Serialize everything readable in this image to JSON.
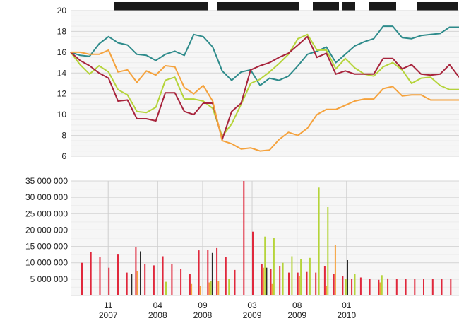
{
  "chart_data": [
    {
      "type": "line",
      "ylim": [
        6,
        20
      ],
      "yticks": [
        "6",
        "8",
        "10",
        "12",
        "14",
        "16",
        "18",
        "20"
      ],
      "grid": true,
      "legend": "top-right (unreadable)",
      "x_count": 42,
      "series": [
        {
          "color": "#2e8b8b",
          "values": [
            16.0,
            15.7,
            15.6,
            16.8,
            17.5,
            16.9,
            16.7,
            15.8,
            15.7,
            15.2,
            15.8,
            16.1,
            15.7,
            17.7,
            17.5,
            16.5,
            14.2,
            13.3,
            14.1,
            14.3,
            12.8,
            13.5,
            13.3,
            13.7,
            14.7,
            15.8,
            16.1,
            16.5,
            15.0,
            15.8,
            16.6,
            17.0,
            17.3,
            18.5,
            18.5,
            17.4,
            17.3,
            17.6,
            17.7,
            17.8,
            18.4,
            18.4
          ]
        },
        {
          "color": "#b5d43a",
          "values": [
            16.0,
            14.8,
            13.9,
            14.7,
            14.1,
            12.4,
            11.9,
            10.3,
            10.2,
            10.7,
            13.3,
            13.6,
            11.5,
            11.5,
            11.3,
            10.6,
            7.9,
            9.1,
            11.0,
            13.0,
            13.4,
            14.1,
            14.9,
            15.8,
            17.3,
            17.7,
            16.2,
            16.2,
            14.4,
            15.4,
            14.5,
            13.9,
            13.7,
            14.6,
            15.0,
            14.3,
            13.0,
            13.5,
            13.6,
            12.8,
            12.4,
            12.4
          ]
        },
        {
          "color": "#a8243c",
          "values": [
            16.0,
            15.2,
            14.7,
            14.0,
            13.5,
            11.3,
            11.4,
            9.6,
            9.6,
            9.4,
            12.1,
            12.1,
            10.3,
            10.0,
            11.1,
            11.1,
            7.6,
            10.3,
            11.1,
            14.3,
            14.7,
            15.0,
            15.5,
            15.9,
            16.7,
            17.5,
            15.5,
            15.9,
            13.9,
            14.2,
            13.9,
            13.9,
            13.9,
            15.4,
            15.4,
            14.4,
            14.8,
            13.9,
            13.8,
            13.9,
            14.8,
            13.6
          ]
        },
        {
          "color": "#f5a23c",
          "values": [
            16.0,
            16.0,
            15.8,
            15.8,
            16.2,
            14.1,
            14.3,
            13.1,
            14.2,
            13.8,
            14.7,
            14.6,
            12.6,
            12.0,
            12.8,
            11.3,
            7.5,
            7.2,
            6.7,
            6.8,
            6.5,
            6.6,
            7.6,
            8.3,
            8.0,
            8.7,
            10.0,
            10.5,
            10.5,
            10.9,
            11.3,
            11.5,
            11.5,
            12.5,
            12.7,
            11.8,
            11.9,
            11.9,
            11.4,
            11.4,
            11.4,
            11.4
          ]
        }
      ]
    },
    {
      "type": "bar",
      "ylim": [
        0,
        35000000
      ],
      "yticks": [
        "5 000 000",
        "10 000 000",
        "15 000 000",
        "20 000 000",
        "25 000 000",
        "30 000 000",
        "35 000 000"
      ],
      "grid": true,
      "xticks": [
        {
          "month": "11",
          "year": "2007"
        },
        {
          "month": "04",
          "year": "2008"
        },
        {
          "month": "09",
          "year": "2008"
        },
        {
          "month": "03",
          "year": "2009"
        },
        {
          "month": "08",
          "year": "2009"
        },
        {
          "month": "01",
          "year": "2010"
        }
      ],
      "bars": [
        {
          "color": "#e0283c",
          "values": [
            10000000,
            13300000,
            11800000,
            8500000,
            12500000,
            7000000,
            14800000,
            9500000,
            9200000,
            12000000,
            9500000,
            8200000,
            6500000,
            13800000,
            14000000,
            14500000,
            11800000,
            7800000,
            35000000,
            19500000,
            9500000,
            8000000,
            9000000,
            7000000,
            7000000,
            7200000,
            7000000,
            9000000,
            6500000,
            6000000,
            5000000,
            5500000,
            5000000,
            4800000,
            5200000,
            5000000,
            5000000,
            5000000,
            5000000,
            5000000,
            5000000,
            5000000
          ]
        },
        {
          "color": "#f5a23c",
          "values": [
            0,
            0,
            0,
            0,
            0,
            0,
            7500000,
            0,
            0,
            0,
            0,
            0,
            3500000,
            3000000,
            4000000,
            4500000,
            0,
            0,
            0,
            0,
            8500000,
            3500000,
            0,
            0,
            6000000,
            0,
            0,
            3000000,
            15500000,
            0,
            0,
            0,
            0,
            4000000,
            0,
            0,
            0,
            0,
            0,
            0,
            0,
            0
          ]
        },
        {
          "color": "#b5d43a",
          "values": [
            0,
            0,
            0,
            0,
            0,
            0,
            0,
            0,
            0,
            4200000,
            0,
            0,
            0,
            0,
            4500000,
            0,
            5000000,
            0,
            0,
            0,
            18000000,
            17500000,
            10000000,
            12000000,
            11200000,
            11500000,
            33000000,
            27000000,
            0,
            5000000,
            6700000,
            0,
            0,
            6200000,
            0,
            0,
            0,
            0,
            0,
            0,
            0,
            0
          ]
        },
        {
          "color": "#2a2a2a",
          "values": [
            0,
            0,
            0,
            0,
            0,
            6500000,
            13500000,
            0,
            0,
            0,
            0,
            0,
            0,
            0,
            13000000,
            0,
            0,
            0,
            0,
            0,
            8500000,
            0,
            0,
            0,
            0,
            0,
            0,
            0,
            0,
            10800000,
            0,
            0,
            0,
            0,
            0,
            0,
            0,
            0,
            0,
            0,
            0,
            0
          ]
        }
      ]
    }
  ]
}
